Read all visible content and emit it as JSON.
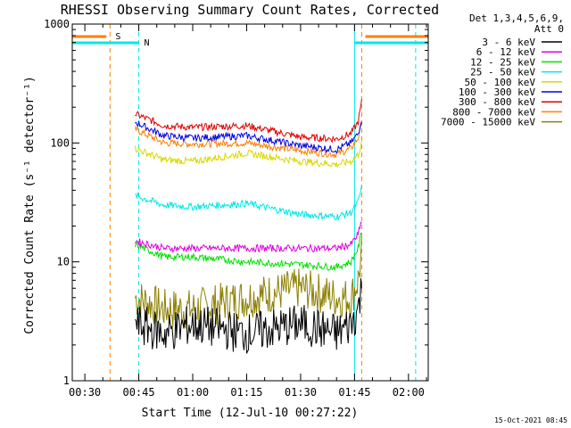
{
  "chart_data": {
    "type": "line",
    "title": "RHESSI Observing Summary Count Rates, Corrected",
    "xlabel": "Start Time (12-Jul-10 00:27:22)",
    "ylabel": "Corrected Count Rate (s⁻¹ detector⁻¹)",
    "y_scale": "log",
    "ylim": [
      1,
      1000
    ],
    "xlim_minutes_after_0030": [
      -3.5,
      95.5
    ],
    "x_ticks": [
      "00:30",
      "00:45",
      "01:00",
      "01:15",
      "01:30",
      "01:45",
      "02:00"
    ],
    "y_ticks": [
      "1",
      "10",
      "100",
      "1000"
    ],
    "legend_position": "right, outside plot",
    "legend_header": [
      "Det 1,3,4,5,6,9,",
      "Att 0"
    ],
    "series": [
      {
        "name": "3 - 6 keV",
        "color": "#000000",
        "times": [
          "00:44",
          "00:52",
          "01:00",
          "01:15",
          "01:30",
          "01:40",
          "01:44",
          "01:46",
          "01:47"
        ],
        "values": [
          3,
          2.5,
          3,
          2.5,
          3,
          2.5,
          3,
          4,
          6
        ]
      },
      {
        "name": "6 - 12 keV",
        "color": "#e000e0",
        "times": [
          "00:44",
          "00:52",
          "01:00",
          "01:15",
          "01:30",
          "01:40",
          "01:44",
          "01:46",
          "01:47"
        ],
        "values": [
          15,
          13,
          13,
          13,
          13,
          13,
          14,
          17,
          22
        ]
      },
      {
        "name": "12 - 25 keV",
        "color": "#00e000",
        "times": [
          "00:44",
          "00:52",
          "01:00",
          "01:15",
          "01:30",
          "01:40",
          "01:44",
          "01:46",
          "01:47"
        ],
        "values": [
          14,
          11,
          11,
          10,
          9.5,
          9,
          10,
          13,
          18
        ]
      },
      {
        "name": "25 - 50 keV",
        "color": "#00e8e8",
        "times": [
          "00:44",
          "00:52",
          "01:00",
          "01:15",
          "01:30",
          "01:40",
          "01:44",
          "01:46",
          "01:47"
        ],
        "values": [
          36,
          30,
          29,
          31,
          25,
          24,
          26,
          32,
          42
        ]
      },
      {
        "name": "50 - 100 keV",
        "color": "#d8d800",
        "times": [
          "00:44",
          "00:52",
          "01:00",
          "01:15",
          "01:30",
          "01:40",
          "01:44",
          "01:46",
          "01:47"
        ],
        "values": [
          90,
          72,
          70,
          82,
          70,
          66,
          70,
          80,
          100
        ]
      },
      {
        "name": "100 - 300 keV",
        "color": "#0000e0",
        "times": [
          "00:44",
          "00:52",
          "01:00",
          "01:15",
          "01:30",
          "01:40",
          "01:44",
          "01:46",
          "01:47"
        ],
        "values": [
          150,
          115,
          110,
          115,
          95,
          88,
          100,
          120,
          160
        ]
      },
      {
        "name": "300 - 800 keV",
        "color": "#e00000",
        "times": [
          "00:44",
          "00:52",
          "01:00",
          "01:15",
          "01:30",
          "01:40",
          "01:44",
          "01:46",
          "01:47"
        ],
        "values": [
          175,
          140,
          135,
          140,
          112,
          108,
          120,
          150,
          220
        ]
      },
      {
        "name": "800 - 7000 keV",
        "color": "#ff7f00",
        "times": [
          "00:44",
          "00:52",
          "01:00",
          "01:15",
          "01:30",
          "01:40",
          "01:44",
          "01:46",
          "01:47"
        ],
        "values": [
          130,
          100,
          98,
          100,
          86,
          80,
          90,
          110,
          150
        ]
      },
      {
        "name": "7000 - 15000 keV",
        "color": "#8c8000",
        "times": [
          "00:44",
          "00:52",
          "01:00",
          "01:15",
          "01:30",
          "01:40",
          "01:44",
          "01:46",
          "01:47"
        ],
        "values": [
          5,
          4,
          4,
          5,
          6,
          5,
          5,
          7,
          12
        ]
      }
    ],
    "annotations": [
      {
        "label": "S",
        "color": "#ff7f00",
        "time": "00:37"
      },
      {
        "label": "N",
        "color": "#00e8e8",
        "time": "00:45"
      }
    ],
    "interval_markers": [
      {
        "color": "#ff7f00",
        "times": [
          "00:37",
          "01:47"
        ]
      },
      {
        "color": "#00e8e8",
        "times": [
          "00:45",
          "01:45",
          "02:02"
        ]
      }
    ]
  },
  "footer": {
    "timestamp": "15-Oct-2021 08:45"
  }
}
